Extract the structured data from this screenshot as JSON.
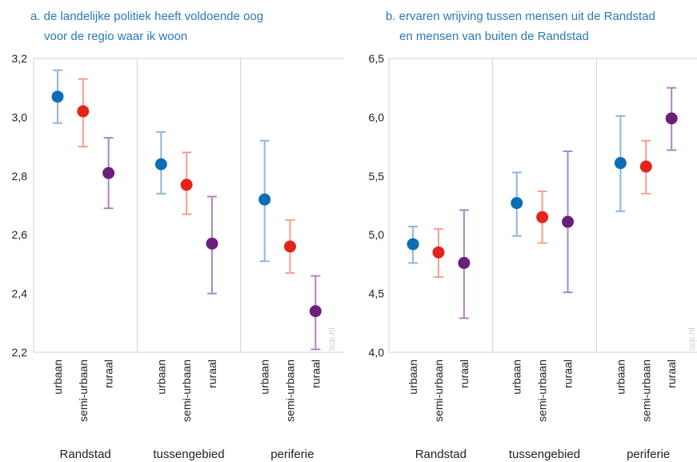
{
  "watermark": "scp.nl",
  "colors": {
    "urbaan": "#0d6db5",
    "semi-urbaan": "#e3241a",
    "ruraal": "#6a1f7a",
    "urbaan_bar": "#8fb4de",
    "semi-urbaan_bar": "#f2a08d",
    "ruraal_bar": "#ab86bf",
    "title": "#2a7ab8",
    "gridline": "#d0d0d0"
  },
  "chart_data": [
    {
      "type": "scatter",
      "title_lines": [
        "a. de landelijke politiek heeft voldoende oog",
        "voor de regio waar ik woon"
      ],
      "ylim": [
        2.2,
        3.2
      ],
      "yticks": [
        "2,2",
        "2,4",
        "2,6",
        "2,8",
        "3,0",
        "3,2"
      ],
      "ytick_values": [
        2.2,
        2.4,
        2.6,
        2.8,
        3.0,
        3.2
      ],
      "groups": [
        "Randstad",
        "tussengebied",
        "periferie"
      ],
      "categories": [
        "urbaan",
        "semi-urbaan",
        "ruraal"
      ],
      "points": [
        {
          "group": "Randstad",
          "category": "urbaan",
          "value": 3.07,
          "low": 2.98,
          "high": 3.16
        },
        {
          "group": "Randstad",
          "category": "semi-urbaan",
          "value": 3.02,
          "low": 2.9,
          "high": 3.13
        },
        {
          "group": "Randstad",
          "category": "ruraal",
          "value": 2.81,
          "low": 2.69,
          "high": 2.93
        },
        {
          "group": "tussengebied",
          "category": "urbaan",
          "value": 2.84,
          "low": 2.74,
          "high": 2.95
        },
        {
          "group": "tussengebied",
          "category": "semi-urbaan",
          "value": 2.77,
          "low": 2.67,
          "high": 2.88
        },
        {
          "group": "tussengebied",
          "category": "ruraal",
          "value": 2.57,
          "low": 2.4,
          "high": 2.73
        },
        {
          "group": "periferie",
          "category": "urbaan",
          "value": 2.72,
          "low": 2.51,
          "high": 2.92
        },
        {
          "group": "periferie",
          "category": "semi-urbaan",
          "value": 2.56,
          "low": 2.47,
          "high": 2.65
        },
        {
          "group": "periferie",
          "category": "ruraal",
          "value": 2.34,
          "low": 2.21,
          "high": 2.46
        }
      ]
    },
    {
      "type": "scatter",
      "title_lines": [
        "b. ervaren wrijving tussen mensen uit de Randstad",
        "en mensen van buiten de Randstad"
      ],
      "ylim": [
        4.0,
        6.5
      ],
      "yticks": [
        "4,0",
        "4,5",
        "5,0",
        "5,5",
        "6,0",
        "6,5"
      ],
      "ytick_values": [
        4.0,
        4.5,
        5.0,
        5.5,
        6.0,
        6.5
      ],
      "groups": [
        "Randstad",
        "tussengebied",
        "periferie"
      ],
      "categories": [
        "urbaan",
        "semi-urbaan",
        "ruraal"
      ],
      "points": [
        {
          "group": "Randstad",
          "category": "urbaan",
          "value": 4.92,
          "low": 4.76,
          "high": 5.07
        },
        {
          "group": "Randstad",
          "category": "semi-urbaan",
          "value": 4.85,
          "low": 4.64,
          "high": 5.05
        },
        {
          "group": "Randstad",
          "category": "ruraal",
          "value": 4.76,
          "low": 4.29,
          "high": 5.21
        },
        {
          "group": "tussengebied",
          "category": "urbaan",
          "value": 5.27,
          "low": 4.99,
          "high": 5.53
        },
        {
          "group": "tussengebied",
          "category": "semi-urbaan",
          "value": 5.15,
          "low": 4.93,
          "high": 5.37
        },
        {
          "group": "tussengebied",
          "category": "ruraal",
          "value": 5.11,
          "low": 4.51,
          "high": 5.71
        },
        {
          "group": "periferie",
          "category": "urbaan",
          "value": 5.61,
          "low": 5.2,
          "high": 6.01
        },
        {
          "group": "periferie",
          "category": "semi-urbaan",
          "value": 5.58,
          "low": 5.35,
          "high": 5.8
        },
        {
          "group": "periferie",
          "category": "ruraal",
          "value": 5.99,
          "low": 5.72,
          "high": 6.25
        }
      ]
    }
  ]
}
